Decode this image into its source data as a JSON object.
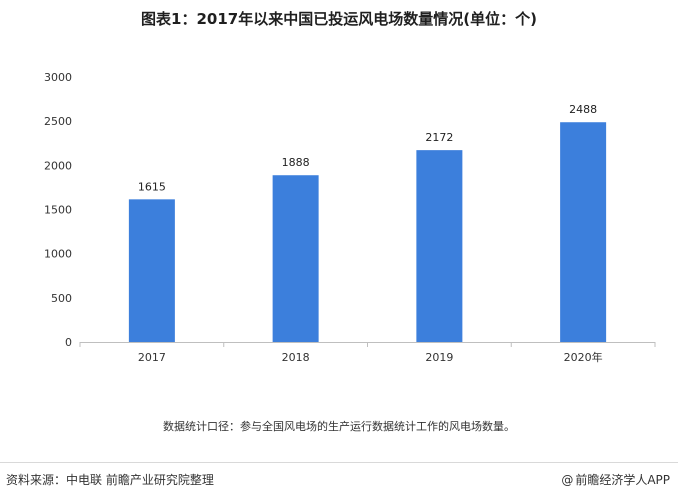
{
  "title": "图表1：2017年以来中国已投运风电场数量情况(单位：个)",
  "note": "数据统计口径：参与全国风电场的生产运行数据统计工作的风电场数量。",
  "source": "资料来源：中电联 前瞻产业研究院整理",
  "brand": {
    "symbol": "@",
    "text": "前瞻经济学人APP"
  },
  "colors": {
    "bar": "#3c7fdc",
    "axis": "#bfbfbf"
  },
  "chart_data": {
    "type": "bar",
    "categories": [
      "2017",
      "2018",
      "2019",
      "2020年"
    ],
    "values": [
      1615,
      1888,
      2172,
      2488
    ],
    "ylim": [
      0,
      3000
    ],
    "yticks": [
      0,
      500,
      1000,
      1500,
      2000,
      2500,
      3000
    ],
    "grid": false,
    "legend": "none"
  }
}
